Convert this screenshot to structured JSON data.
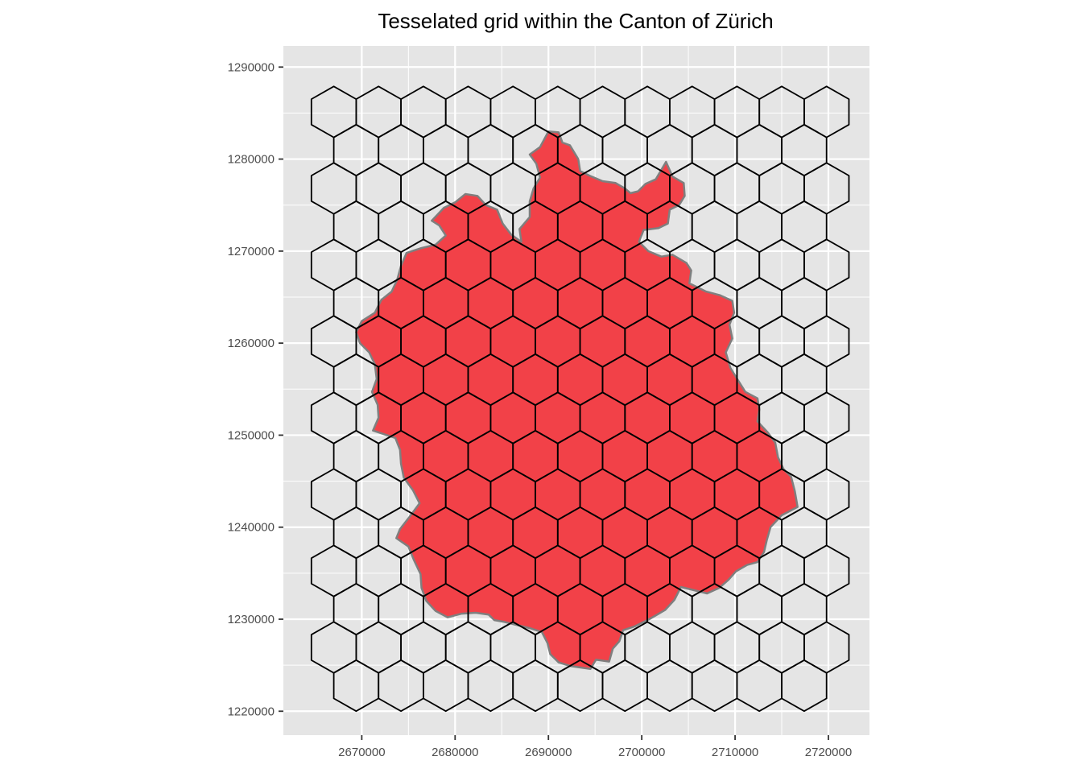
{
  "chart_data": {
    "type": "map",
    "title": "Tesselated grid within the Canton of Zürich",
    "xlabel": "",
    "ylabel": "",
    "xlim": [
      2661600,
      2724400
    ],
    "ylim": [
      1217400,
      1292300
    ],
    "x_ticks": [
      2670000,
      2680000,
      2690000,
      2700000,
      2710000,
      2720000
    ],
    "y_ticks": [
      1220000,
      1230000,
      1240000,
      1250000,
      1260000,
      1270000,
      1280000,
      1290000
    ],
    "x_tick_labels": [
      "2670000",
      "2680000",
      "2690000",
      "2700000",
      "2710000",
      "2720000"
    ],
    "y_tick_labels": [
      "1220000",
      "1230000",
      "1240000",
      "1250000",
      "1260000",
      "1270000",
      "1280000",
      "1290000"
    ],
    "grid": true,
    "panel_color": "#e5e5e5",
    "gridline_color": "#ffffff",
    "canton_fill": "#f24148",
    "canton_outline": "#7f7f7f",
    "hex_stroke": "#000000",
    "hex_grid": {
      "cell_width": 4800,
      "apothem": 2400,
      "center_to_vertex": 2771,
      "row_spacing": 4157,
      "first_row_center_y": 1285130,
      "row_count": 16,
      "row_start_x": [
        2667000,
        2669400
      ],
      "row_lengths": [
        12,
        11
      ]
    },
    "canton_boundary": [
      [
        2690000,
        1283000
      ],
      [
        2691100,
        1282900
      ],
      [
        2691500,
        1281800
      ],
      [
        2692300,
        1281500
      ],
      [
        2693200,
        1280000
      ],
      [
        2693400,
        1278700
      ],
      [
        2694400,
        1278200
      ],
      [
        2695800,
        1277600
      ],
      [
        2697200,
        1277400
      ],
      [
        2698200,
        1276800
      ],
      [
        2698800,
        1276300
      ],
      [
        2699600,
        1276500
      ],
      [
        2700400,
        1277300
      ],
      [
        2701500,
        1277800
      ],
      [
        2702600,
        1279700
      ],
      [
        2703300,
        1278100
      ],
      [
        2704500,
        1277400
      ],
      [
        2704600,
        1276000
      ],
      [
        2704000,
        1275000
      ],
      [
        2703000,
        1274500
      ],
      [
        2702800,
        1273000
      ],
      [
        2701800,
        1272500
      ],
      [
        2700200,
        1272300
      ],
      [
        2699700,
        1271000
      ],
      [
        2700700,
        1270000
      ],
      [
        2702100,
        1269400
      ],
      [
        2703300,
        1269600
      ],
      [
        2704800,
        1268700
      ],
      [
        2705300,
        1267900
      ],
      [
        2705100,
        1266500
      ],
      [
        2706900,
        1265600
      ],
      [
        2708400,
        1265200
      ],
      [
        2709700,
        1264600
      ],
      [
        2709900,
        1263300
      ],
      [
        2709400,
        1262000
      ],
      [
        2709700,
        1260500
      ],
      [
        2709000,
        1259000
      ],
      [
        2709500,
        1257300
      ],
      [
        2710300,
        1256000
      ],
      [
        2711100,
        1254700
      ],
      [
        2712400,
        1254000
      ],
      [
        2712600,
        1252800
      ],
      [
        2712400,
        1251500
      ],
      [
        2713500,
        1250300
      ],
      [
        2714300,
        1249200
      ],
      [
        2714600,
        1247600
      ],
      [
        2715200,
        1246300
      ],
      [
        2716000,
        1245500
      ],
      [
        2716400,
        1243900
      ],
      [
        2716700,
        1242200
      ],
      [
        2715000,
        1241300
      ],
      [
        2713800,
        1240000
      ],
      [
        2713400,
        1238600
      ],
      [
        2713100,
        1237300
      ],
      [
        2712400,
        1236200
      ],
      [
        2711300,
        1235900
      ],
      [
        2710100,
        1235200
      ],
      [
        2709300,
        1234300
      ],
      [
        2708300,
        1233400
      ],
      [
        2707000,
        1232800
      ],
      [
        2705400,
        1233200
      ],
      [
        2704200,
        1233500
      ],
      [
        2703500,
        1232100
      ],
      [
        2702500,
        1231000
      ],
      [
        2700800,
        1230000
      ],
      [
        2699200,
        1229200
      ],
      [
        2698000,
        1228800
      ],
      [
        2697600,
        1227600
      ],
      [
        2696900,
        1226800
      ],
      [
        2696500,
        1225400
      ],
      [
        2695100,
        1225600
      ],
      [
        2694500,
        1224600
      ],
      [
        2692400,
        1224900
      ],
      [
        2691100,
        1225300
      ],
      [
        2690200,
        1226200
      ],
      [
        2689900,
        1227400
      ],
      [
        2689300,
        1228600
      ],
      [
        2688100,
        1229000
      ],
      [
        2686500,
        1229400
      ],
      [
        2685300,
        1229700
      ],
      [
        2684200,
        1229900
      ],
      [
        2683600,
        1230500
      ],
      [
        2682200,
        1230700
      ],
      [
        2680700,
        1230600
      ],
      [
        2679200,
        1230200
      ],
      [
        2677900,
        1230900
      ],
      [
        2676900,
        1232000
      ],
      [
        2676400,
        1233400
      ],
      [
        2676300,
        1234900
      ],
      [
        2675600,
        1236400
      ],
      [
        2675000,
        1237900
      ],
      [
        2673700,
        1238800
      ],
      [
        2674100,
        1239800
      ],
      [
        2675100,
        1241100
      ],
      [
        2676200,
        1242600
      ],
      [
        2675500,
        1244000
      ],
      [
        2674500,
        1245400
      ],
      [
        2674200,
        1246900
      ],
      [
        2674100,
        1248400
      ],
      [
        2673600,
        1249700
      ],
      [
        2672400,
        1250100
      ],
      [
        2671200,
        1250500
      ],
      [
        2671800,
        1251900
      ],
      [
        2671700,
        1253300
      ],
      [
        2671100,
        1254700
      ],
      [
        2671600,
        1256100
      ],
      [
        2671400,
        1257700
      ],
      [
        2670800,
        1259000
      ],
      [
        2669800,
        1260000
      ],
      [
        2669400,
        1261200
      ],
      [
        2670000,
        1262400
      ],
      [
        2671400,
        1263300
      ],
      [
        2672100,
        1264700
      ],
      [
        2673200,
        1265600
      ],
      [
        2673800,
        1266900
      ],
      [
        2674200,
        1268400
      ],
      [
        2674800,
        1269800
      ],
      [
        2676300,
        1270300
      ],
      [
        2677900,
        1270700
      ],
      [
        2679000,
        1271700
      ],
      [
        2678300,
        1272800
      ],
      [
        2677500,
        1273300
      ],
      [
        2678800,
        1274700
      ],
      [
        2680000,
        1275300
      ],
      [
        2681100,
        1276200
      ],
      [
        2682400,
        1276000
      ],
      [
        2683300,
        1275000
      ],
      [
        2684500,
        1274500
      ],
      [
        2685100,
        1273000
      ],
      [
        2686000,
        1271800
      ],
      [
        2687100,
        1271000
      ],
      [
        2686900,
        1272400
      ],
      [
        2688000,
        1273700
      ],
      [
        2688000,
        1275400
      ],
      [
        2688400,
        1276800
      ],
      [
        2689100,
        1278000
      ],
      [
        2688700,
        1279500
      ],
      [
        2688000,
        1280500
      ],
      [
        2689100,
        1281300
      ],
      [
        2690000,
        1283000
      ]
    ]
  }
}
